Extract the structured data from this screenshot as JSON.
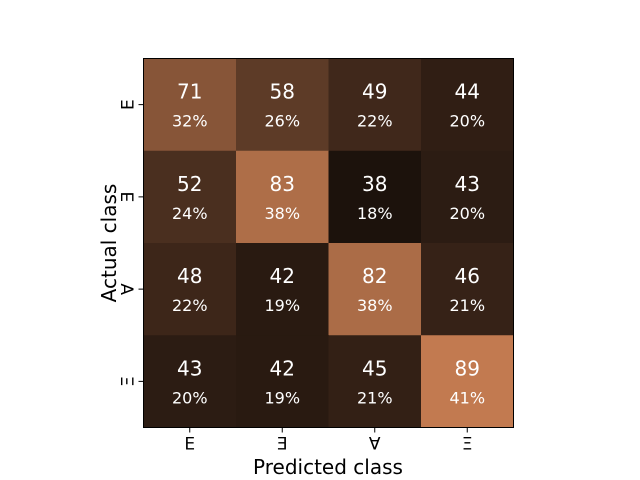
{
  "chart_data": {
    "type": "heatmap",
    "title": "",
    "xlabel": "Predicted class",
    "ylabel": "Actual class",
    "x_categories": [
      "Ε",
      "Ǝ",
      "Ɐ",
      "Ξ"
    ],
    "y_categories": [
      "Ε",
      "Ǝ",
      "Ɐ",
      "Ξ"
    ],
    "counts": [
      [
        71,
        58,
        49,
        44
      ],
      [
        52,
        83,
        38,
        43
      ],
      [
        48,
        42,
        82,
        46
      ],
      [
        43,
        42,
        45,
        89
      ]
    ],
    "percentages": [
      [
        "32%",
        "26%",
        "22%",
        "20%"
      ],
      [
        "24%",
        "38%",
        "18%",
        "20%"
      ],
      [
        "22%",
        "19%",
        "38%",
        "21%"
      ],
      [
        "20%",
        "19%",
        "21%",
        "41%"
      ]
    ],
    "colormap": {
      "low": "#1c120c",
      "high": "#c27a50"
    },
    "value_range": [
      38,
      89
    ],
    "grid": false,
    "legend": "none"
  }
}
